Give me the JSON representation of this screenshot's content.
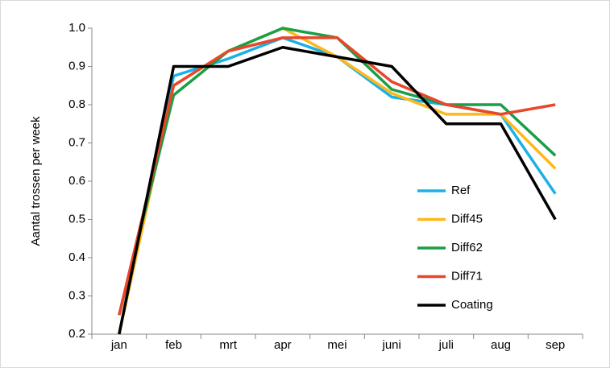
{
  "chart_data": {
    "type": "line",
    "y_label": "Aantal trossen per week",
    "categories": [
      "jan",
      "feb",
      "mrt",
      "apr",
      "mei",
      "juni",
      "juli",
      "aug",
      "sep"
    ],
    "series": [
      {
        "name": "Ref",
        "color": "#1ab0e8",
        "values": [
          0.2,
          0.875,
          0.92,
          0.975,
          0.925,
          0.82,
          0.8,
          0.775,
          0.567
        ]
      },
      {
        "name": "Diff45",
        "color": "#ffb819",
        "values": [
          0.2,
          0.85,
          0.94,
          1.0,
          0.925,
          0.83,
          0.775,
          0.775,
          0.633
        ]
      },
      {
        "name": "Diff62",
        "color": "#1a9e48",
        "values": [
          0.25,
          0.825,
          0.94,
          1.0,
          0.975,
          0.84,
          0.8,
          0.8,
          0.667
        ]
      },
      {
        "name": "Diff71",
        "color": "#e8472a",
        "values": [
          0.25,
          0.85,
          0.94,
          0.975,
          0.975,
          0.86,
          0.8,
          0.775,
          0.8
        ]
      },
      {
        "name": "Coating",
        "color": "#000000",
        "values": [
          0.2,
          0.9,
          0.9,
          0.95,
          0.925,
          0.9,
          0.75,
          0.75,
          0.5
        ]
      }
    ],
    "ylim": [
      0.2,
      1.0
    ],
    "yticks": [
      0.2,
      0.3,
      0.4,
      0.5,
      0.6,
      0.7,
      0.8,
      0.9,
      {
        "value": 1.0,
        "label": "1.0"
      }
    ],
    "grid": false,
    "legend": "right"
  }
}
